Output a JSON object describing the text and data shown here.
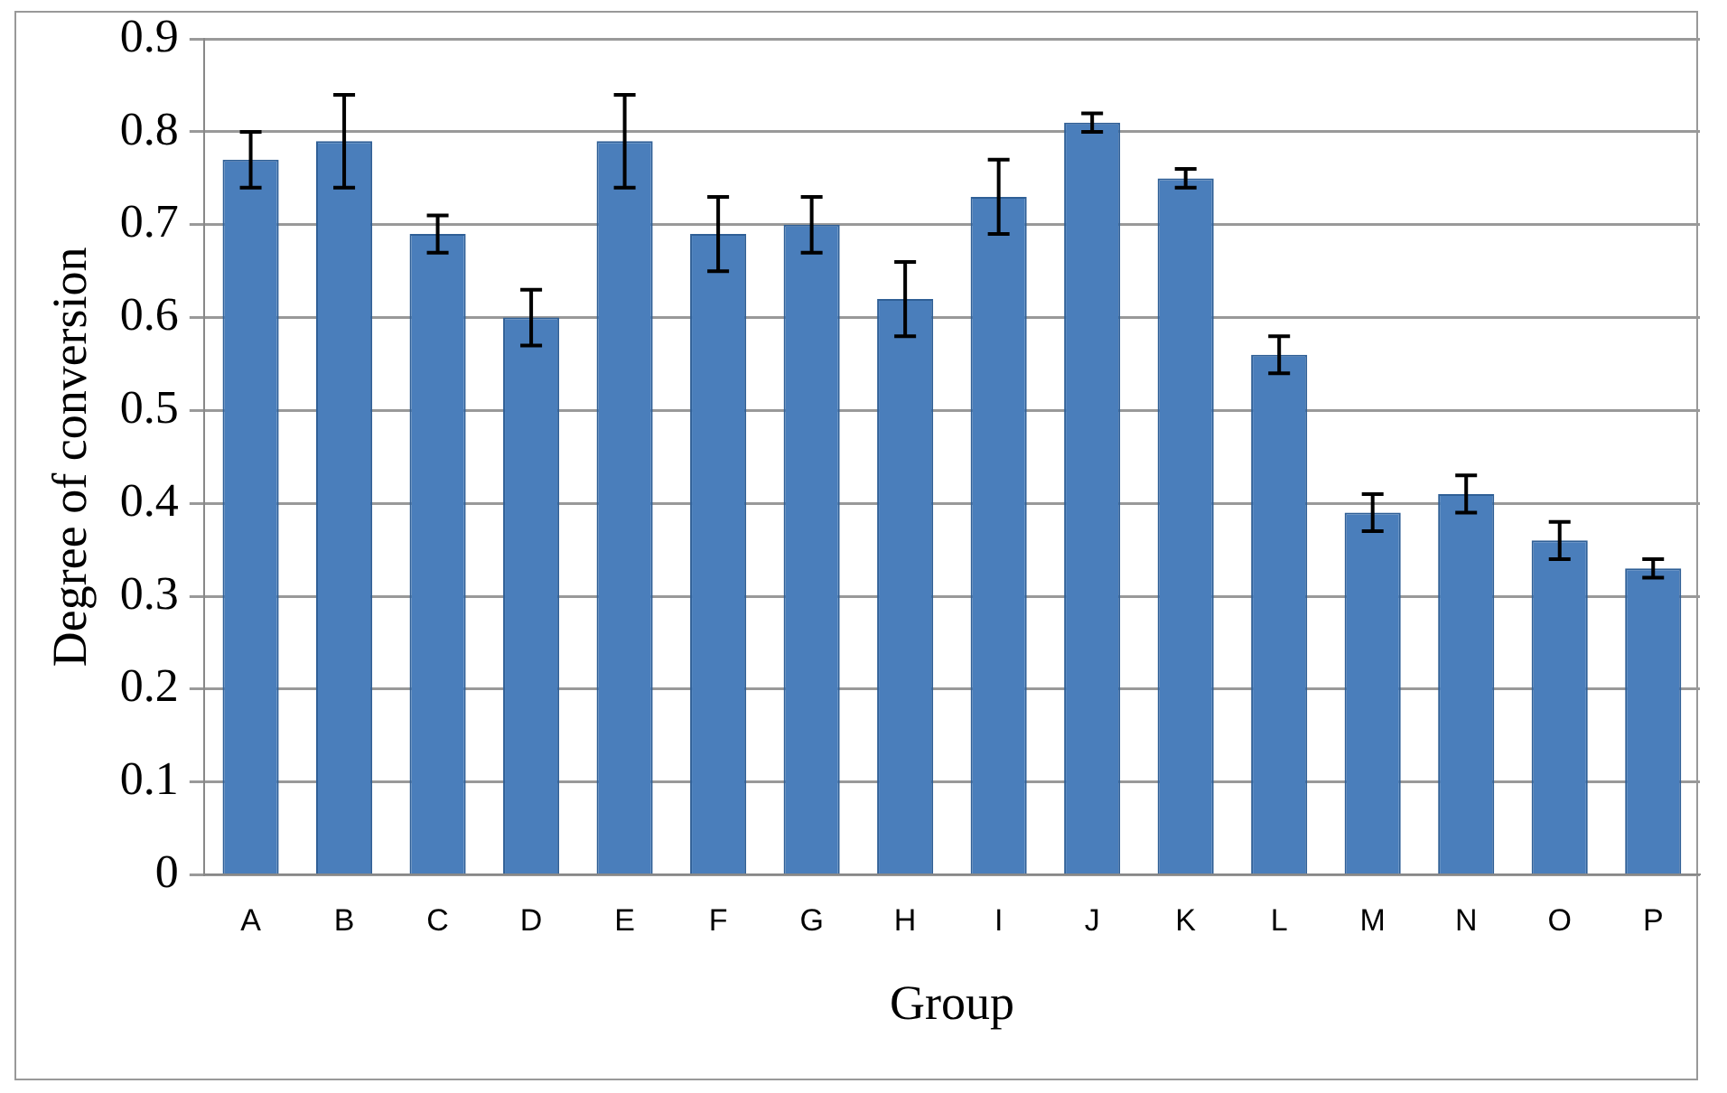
{
  "chart_data": {
    "type": "bar",
    "xlabel": "Group",
    "ylabel": "Degree of conversion",
    "categories": [
      "A",
      "B",
      "C",
      "D",
      "E",
      "F",
      "G",
      "H",
      "I",
      "J",
      "K",
      "L",
      "M",
      "N",
      "O",
      "P"
    ],
    "values": [
      0.77,
      0.79,
      0.69,
      0.6,
      0.79,
      0.69,
      0.7,
      0.62,
      0.73,
      0.81,
      0.75,
      0.56,
      0.39,
      0.41,
      0.36,
      0.33
    ],
    "errors": [
      0.03,
      0.05,
      0.02,
      0.03,
      0.05,
      0.04,
      0.03,
      0.04,
      0.04,
      0.01,
      0.01,
      0.02,
      0.02,
      0.02,
      0.02,
      0.01
    ],
    "color": "#4a7ebb",
    "ylim": [
      0,
      0.9
    ],
    "yticks": [
      0,
      {
        "value": 0.1,
        "label": "0.1"
      },
      {
        "value": 0.2,
        "label": "0.2"
      },
      {
        "value": 0.3,
        "label": "0.3"
      },
      {
        "value": 0.4,
        "label": "0.4"
      },
      {
        "value": 0.5,
        "label": "0.5"
      },
      {
        "value": 0.6,
        "label": "0.6"
      },
      {
        "value": 0.7,
        "label": "0.7"
      },
      {
        "value": 0.8,
        "label": "0.8"
      },
      {
        "value": 0.9,
        "label": "0.9"
      }
    ],
    "grid": "y",
    "legend": false
  }
}
